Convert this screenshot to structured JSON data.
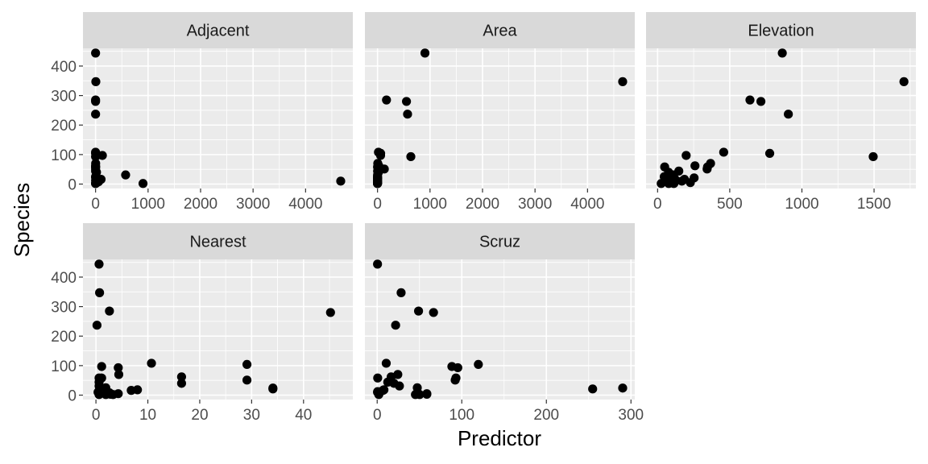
{
  "chart_data": {
    "type": "scatter",
    "xlabel": "Predictor",
    "ylabel": "Species",
    "y_ticks": [
      0,
      100,
      200,
      300,
      400
    ],
    "ylim": [
      -15,
      460
    ],
    "grid": true,
    "species": [
      58,
      31,
      3,
      25,
      2,
      18,
      24,
      10,
      8,
      2,
      97,
      93,
      58,
      5,
      40,
      347,
      51,
      2,
      104,
      108,
      12,
      70,
      280,
      237,
      444,
      62,
      285,
      44,
      16,
      21
    ],
    "panels": [
      {
        "name": "Adjacent",
        "xlim": [
          -240,
          4900
        ],
        "x_ticks": [
          0,
          1000,
          2000,
          3000,
          4000
        ],
        "x": [
          1.84,
          572.33,
          0.78,
          0.18,
          903.82,
          24.08,
          0.57,
          4669.32,
          58.27,
          0.21,
          129.49,
          0.01,
          0.03,
          25.09,
          17.95,
          4.89,
          0.52,
          0.1,
          0.03,
          0.1,
          0.57,
          1.84,
          0.05,
          0.05,
          0.1,
          0.05,
          0.05,
          0.52,
          104.57,
          2.85
        ],
        "y": [
          58,
          31,
          3,
          25,
          2,
          18,
          24,
          10,
          8,
          2,
          97,
          93,
          58,
          5,
          40,
          347,
          51,
          2,
          104,
          108,
          12,
          70,
          280,
          237,
          444,
          62,
          285,
          44,
          16,
          21
        ]
      },
      {
        "name": "Area",
        "xlim": [
          -240,
          4900
        ],
        "x_ticks": [
          0,
          1000,
          2000,
          3000,
          4000
        ],
        "x": [
          25.09,
          1.24,
          0.21,
          0.1,
          0.05,
          0.34,
          0.08,
          2.33,
          0.03,
          0.18,
          58.27,
          634.49,
          0.57,
          0.78,
          17.35,
          4669.32,
          129.49,
          0.01,
          59.56,
          17.95,
          0.23,
          4.89,
          551.62,
          572.33,
          903.82,
          24.08,
          170.92,
          1.84,
          1.24,
          2.85
        ],
        "y": [
          58,
          31,
          3,
          25,
          2,
          18,
          24,
          10,
          8,
          2,
          97,
          93,
          58,
          5,
          40,
          347,
          51,
          2,
          104,
          108,
          12,
          70,
          280,
          237,
          444,
          62,
          285,
          44,
          16,
          21
        ]
      },
      {
        "name": "Elevation",
        "xlim": [
          -80,
          1790
        ],
        "x_ticks": [
          0,
          500,
          1000,
          1500
        ],
        "x": [
          346,
          109,
          114,
          46,
          77,
          119,
          93,
          168,
          71,
          112,
          198,
          1494,
          49,
          227,
          76,
          1707,
          343,
          25,
          777,
          458,
          94,
          367,
          716,
          906,
          864,
          259,
          640,
          147,
          186,
          253
        ],
        "y": [
          58,
          31,
          3,
          25,
          2,
          18,
          24,
          10,
          8,
          2,
          97,
          93,
          58,
          5,
          40,
          347,
          51,
          2,
          104,
          108,
          12,
          70,
          280,
          237,
          444,
          62,
          285,
          44,
          16,
          21
        ]
      },
      {
        "name": "Nearest",
        "xlim": [
          -2.5,
          49.5
        ],
        "x_ticks": [
          0,
          10,
          20,
          30,
          40
        ],
        "x": [
          0.6,
          0.6,
          2.8,
          1.9,
          1.9,
          8.0,
          34.1,
          0.4,
          2.6,
          0.6,
          1.1,
          4.3,
          1.1,
          4.3,
          16.5,
          0.7,
          29.1,
          3.3,
          29.1,
          10.7,
          0.5,
          4.4,
          45.2,
          0.2,
          0.6,
          16.5,
          2.6,
          0.6,
          6.8,
          34.1
        ],
        "y": [
          58,
          31,
          3,
          25,
          2,
          18,
          24,
          10,
          8,
          2,
          97,
          93,
          58,
          5,
          40,
          347,
          51,
          2,
          104,
          108,
          12,
          70,
          280,
          237,
          444,
          62,
          285,
          44,
          16,
          21
        ]
      },
      {
        "name": "Scruz",
        "xlim": [
          -14.5,
          304.5
        ],
        "x_ticks": [
          0,
          100,
          200,
          300
        ],
        "x": [
          0.6,
          26.3,
          58.7,
          47.4,
          1.9,
          8.0,
          290.2,
          0.4,
          2.6,
          50.2,
          88.3,
          95.3,
          93.1,
          58.7,
          19.8,
          28.3,
          92.2,
          45.2,
          119.6,
          10.7,
          0.6,
          24.4,
          66.6,
          21.8,
          0.4,
          16.5,
          48.9,
          12.5,
          6.8,
          254.7
        ],
        "y": [
          58,
          31,
          3,
          25,
          2,
          18,
          24,
          10,
          8,
          2,
          97,
          93,
          58,
          5,
          40,
          347,
          51,
          2,
          104,
          108,
          12,
          70,
          280,
          237,
          444,
          62,
          285,
          44,
          16,
          21
        ]
      }
    ]
  }
}
